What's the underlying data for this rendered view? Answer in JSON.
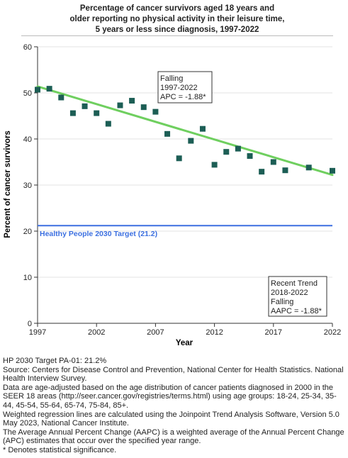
{
  "title_lines": [
    "Percentage of cancer survivors aged 18 years and",
    "older reporting no physical activity in their leisure time,",
    "5 years or less since diagnosis,  1997-2022"
  ],
  "colors": {
    "points": "#1c5e55",
    "trend": "#6fcf5f",
    "target": "#3b6fe0",
    "axis": "#333333",
    "grid": "#e3e3e3"
  },
  "chart_data": {
    "type": "scatter",
    "title": "Percentage of cancer survivors aged 18 years and older reporting no physical activity in their leisure time, 5 years or less since diagnosis,  1997-2022",
    "xlabel": "Year",
    "ylabel": "Percent of cancer survivors",
    "xlim": [
      1997,
      2022
    ],
    "ylim": [
      0,
      60
    ],
    "xticks": [
      1997,
      2002,
      2007,
      2012,
      2017,
      2022
    ],
    "yticks": [
      0,
      10,
      20,
      30,
      40,
      50,
      60
    ],
    "grid": "horizontal",
    "points": [
      {
        "x": 1997,
        "y": 50.7
      },
      {
        "x": 1998,
        "y": 50.9
      },
      {
        "x": 1999,
        "y": 49.0
      },
      {
        "x": 2000,
        "y": 45.6
      },
      {
        "x": 2001,
        "y": 47.1
      },
      {
        "x": 2002,
        "y": 45.6
      },
      {
        "x": 2003,
        "y": 43.3
      },
      {
        "x": 2004,
        "y": 47.3
      },
      {
        "x": 2005,
        "y": 48.3
      },
      {
        "x": 2006,
        "y": 46.9
      },
      {
        "x": 2007,
        "y": 45.9
      },
      {
        "x": 2008,
        "y": 41.1
      },
      {
        "x": 2009,
        "y": 35.8
      },
      {
        "x": 2010,
        "y": 39.6
      },
      {
        "x": 2011,
        "y": 42.2
      },
      {
        "x": 2012,
        "y": 34.4
      },
      {
        "x": 2013,
        "y": 37.2
      },
      {
        "x": 2014,
        "y": 37.9
      },
      {
        "x": 2015,
        "y": 36.3
      },
      {
        "x": 2016,
        "y": 32.9
      },
      {
        "x": 2017,
        "y": 35.0
      },
      {
        "x": 2018,
        "y": 33.2
      },
      {
        "x": 2020,
        "y": 33.8
      },
      {
        "x": 2022,
        "y": 33.1
      }
    ],
    "trend": {
      "x_start": 1997,
      "y_start": 51.4,
      "x_end": 2022,
      "y_end": 32.2,
      "apc": -1.88
    },
    "target": {
      "value": 21.2,
      "label": "Healthy People 2030 Target (21.2)"
    },
    "annotations": [
      {
        "id": "falling",
        "lines": [
          "Falling",
          "1997-2022",
          "APC = -1.88*"
        ]
      },
      {
        "id": "recent",
        "lines": [
          "Recent Trend",
          "2018-2022",
          "Falling",
          "AAPC = -1.88*"
        ]
      }
    ]
  },
  "notes": [
    "HP 2030 Target PA-01: 21.2%",
    "Source: Centers for Disease Control and Prevention, National Center for Health Statistics. National Health Interview Survey.",
    "Data are age-adjusted based on the age distribution of cancer patients diagnosed in 2000 in the SEER 18 areas (http://seer.cancer.gov/registries/terms.html) using age groups: 18-24, 25-34, 35-44, 45-54, 55-64, 65-74, 75-84, 85+.",
    "Weighted regression lines are calculated using the Joinpoint Trend Analysis Software, Version 5.0 May 2023, National Cancer Institute.",
    "The Average Annual Percent Change (AAPC) is a weighted average of the Annual Percent Change (APC) estimates that occur over the specified year range.",
    "* Denotes statistical significance."
  ]
}
